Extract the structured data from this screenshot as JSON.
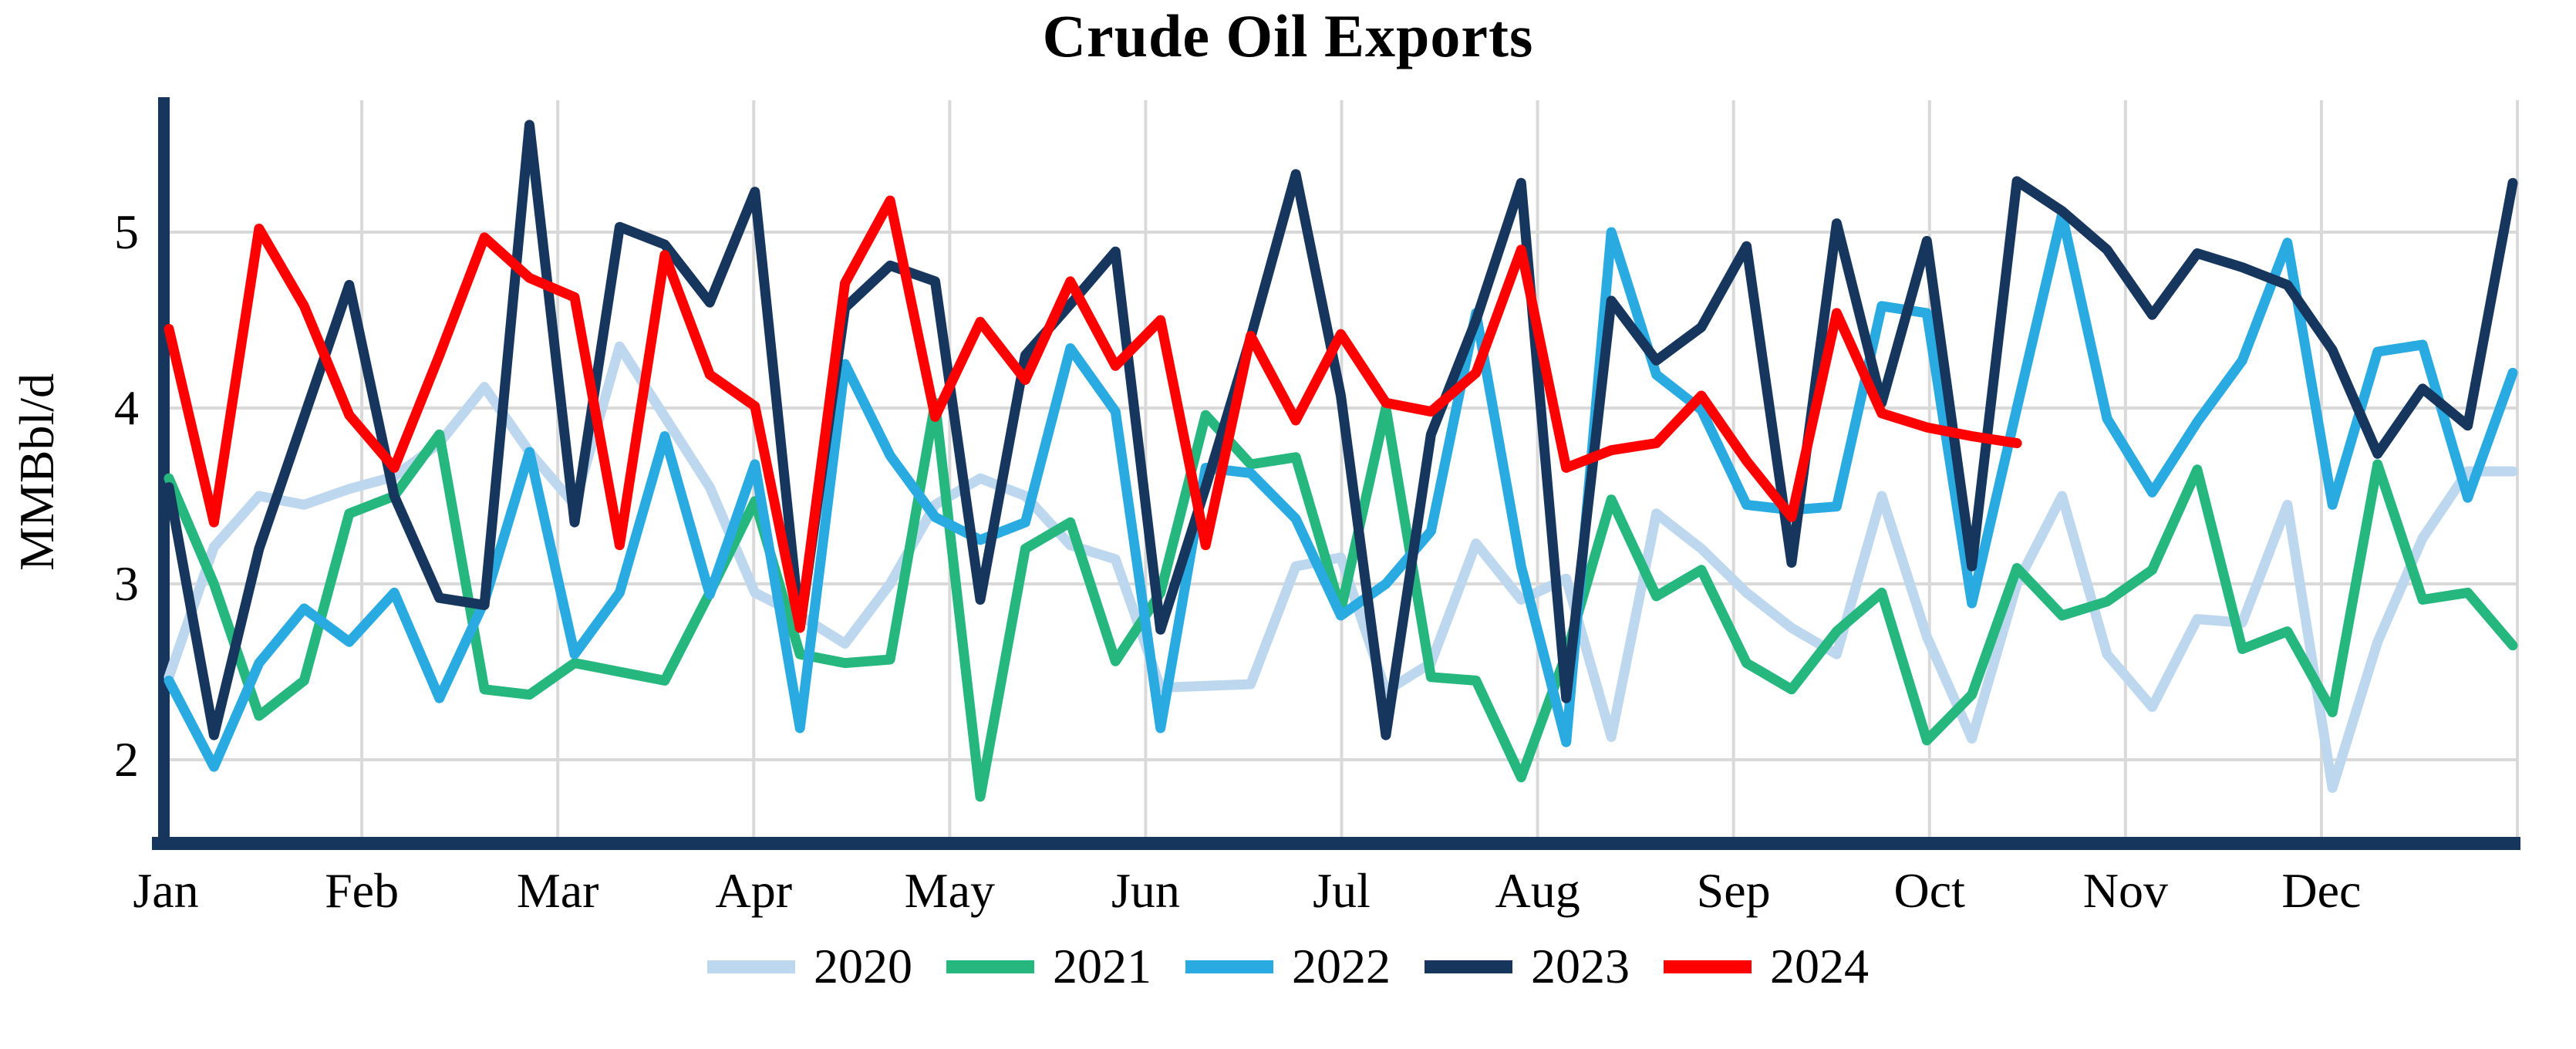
{
  "title": "Crude Oil Exports",
  "y_axis": {
    "label": "MMBbl/d",
    "ticks": [
      {
        "text": "5",
        "value": 5
      },
      {
        "text": "4",
        "value": 4
      },
      {
        "text": "3",
        "value": 3
      },
      {
        "text": "2",
        "value": 2
      }
    ]
  },
  "x_axis": {
    "months": [
      "Jan",
      "Feb",
      "Mar",
      "Apr",
      "May",
      "Jun",
      "Jul",
      "Aug",
      "Sep",
      "Oct",
      "Nov",
      "Dec"
    ]
  },
  "legend": {
    "items": [
      {
        "label": "2020",
        "color": "#BDD7EE"
      },
      {
        "label": "2021",
        "color": "#26B77F"
      },
      {
        "label": "2022",
        "color": "#29ABE2"
      },
      {
        "label": "2023",
        "color": "#17365D"
      },
      {
        "label": "2024",
        "color": "#FF0000"
      }
    ]
  },
  "colors": {
    "axis": "#17365D",
    "gridline": "#D9D9D9",
    "background": "#FFFFFF",
    "title_color": "#000000"
  },
  "chart_data": {
    "type": "line",
    "title": "Crude Oil Exports",
    "xlabel": "",
    "ylabel": "MMBbl/d",
    "x_unit": "weekly data, Jan through Dec",
    "ylim": [
      1.56,
      5.75
    ],
    "yticks": [
      2,
      3,
      4,
      5
    ],
    "grid": true,
    "legend_position": "bottom",
    "months": [
      "Jan",
      "Feb",
      "Mar",
      "Apr",
      "May",
      "Jun",
      "Jul",
      "Aug",
      "Sep",
      "Oct",
      "Nov",
      "Dec"
    ],
    "series": [
      {
        "name": "2020",
        "color": "#BDD7EE",
        "values": [
          2.47,
          3.21,
          3.5,
          3.45,
          3.54,
          3.61,
          3.8,
          4.12,
          3.75,
          3.45,
          4.35,
          3.95,
          3.55,
          2.95,
          2.82,
          2.66,
          3.0,
          3.45,
          3.6,
          3.5,
          3.22,
          3.14,
          2.41,
          2.42,
          2.43,
          3.1,
          3.15,
          2.39,
          2.55,
          3.23,
          2.91,
          3.03,
          2.13,
          3.4,
          3.2,
          2.95,
          2.75,
          2.6,
          3.5,
          2.7,
          2.12,
          3.0,
          3.5,
          2.6,
          2.3,
          2.8,
          2.78,
          3.45,
          1.84,
          2.67,
          3.26,
          3.64,
          3.64
        ]
      },
      {
        "name": "2021",
        "color": "#26B77F",
        "values": [
          3.6,
          3.0,
          2.25,
          2.45,
          3.4,
          3.5,
          3.85,
          2.4,
          2.37,
          2.55,
          2.5,
          2.45,
          2.95,
          3.47,
          2.6,
          2.55,
          2.57,
          4.03,
          1.79,
          3.2,
          3.35,
          2.56,
          2.95,
          3.96,
          3.68,
          3.72,
          2.85,
          4.0,
          2.47,
          2.45,
          1.9,
          2.6,
          3.48,
          2.93,
          3.08,
          2.55,
          2.4,
          2.73,
          2.95,
          2.11,
          2.37,
          3.09,
          2.82,
          2.9,
          3.08,
          3.65,
          2.63,
          2.73,
          2.27,
          3.68,
          2.91,
          2.95,
          2.65
        ]
      },
      {
        "name": "2022",
        "color": "#29ABE2",
        "values": [
          2.45,
          1.96,
          2.55,
          2.86,
          2.67,
          2.95,
          2.35,
          2.9,
          3.75,
          2.6,
          2.95,
          3.84,
          2.94,
          3.68,
          2.18,
          4.25,
          3.73,
          3.38,
          3.25,
          3.35,
          4.34,
          3.98,
          2.18,
          3.66,
          3.63,
          3.37,
          2.82,
          3.0,
          3.3,
          4.54,
          3.1,
          2.1,
          5.0,
          4.19,
          3.99,
          3.45,
          3.42,
          3.44,
          4.58,
          4.54,
          2.89,
          4.0,
          5.1,
          3.94,
          3.52,
          3.92,
          4.27,
          4.94,
          3.45,
          4.32,
          4.36,
          3.49,
          4.2
        ]
      },
      {
        "name": "2023",
        "color": "#17365D",
        "values": [
          3.55,
          2.14,
          3.2,
          3.95,
          4.7,
          3.5,
          2.92,
          2.88,
          5.61,
          3.35,
          5.03,
          4.93,
          4.6,
          5.23,
          2.75,
          4.57,
          4.81,
          4.72,
          2.91,
          4.3,
          4.59,
          4.89,
          2.74,
          3.55,
          4.4,
          5.33,
          4.07,
          2.14,
          3.85,
          4.5,
          5.28,
          2.35,
          4.61,
          4.27,
          4.46,
          4.92,
          3.12,
          5.05,
          4.03,
          4.95,
          3.1,
          5.29,
          5.12,
          4.9,
          4.53,
          4.88,
          4.8,
          4.7,
          4.33,
          3.74,
          4.11,
          3.9,
          5.28
        ]
      },
      {
        "name": "2024",
        "color": "#FF0000",
        "values": [
          4.45,
          3.35,
          5.02,
          4.58,
          3.96,
          3.66,
          4.3,
          4.97,
          4.74,
          4.63,
          3.22,
          4.87,
          4.19,
          4.01,
          2.75,
          4.71,
          5.18,
          3.95,
          4.49,
          4.16,
          4.72,
          4.24,
          4.5,
          3.22,
          4.41,
          3.93,
          4.42,
          4.03,
          3.98,
          4.2,
          4.9,
          3.66,
          3.76,
          3.8,
          4.07,
          3.7,
          3.38,
          4.54,
          3.97,
          3.89,
          3.84,
          3.8
        ]
      }
    ]
  }
}
